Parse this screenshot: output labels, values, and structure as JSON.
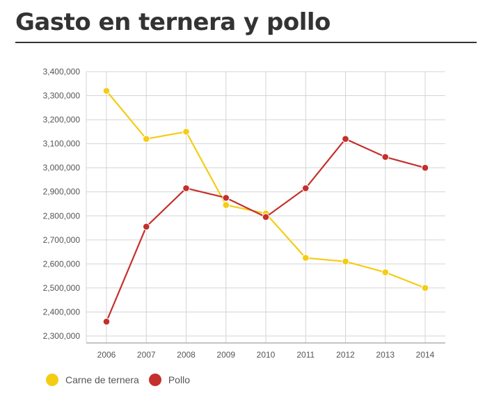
{
  "title": "Gasto en ternera y pollo",
  "colors": {
    "ternera": "#f5cc14",
    "pollo": "#c4302b",
    "grid": "#d4d4d4",
    "axis": "#888888",
    "text": "#555555"
  },
  "chart_data": {
    "type": "line",
    "title": "Gasto en ternera y pollo",
    "xlabel": "",
    "ylabel": "",
    "categories": [
      "2006",
      "2007",
      "2008",
      "2009",
      "2010",
      "2011",
      "2012",
      "2013",
      "2014"
    ],
    "ylim": [
      2270000,
      3400000
    ],
    "yticks": [
      2300000,
      2400000,
      2500000,
      2600000,
      2700000,
      2800000,
      2900000,
      3000000,
      3100000,
      3200000,
      3300000,
      3400000
    ],
    "ytick_labels": [
      "2,300,000",
      "2,400,000",
      "2,500,000",
      "2,600,000",
      "2,700,000",
      "2,800,000",
      "2,900,000",
      "3,000,000",
      "3,100,000",
      "3,200,000",
      "3,300,000",
      "3,400,000"
    ],
    "grid": true,
    "legend_position": "bottom-left",
    "series": [
      {
        "name": "Carne de ternera",
        "color": "#f5cc14",
        "values": [
          3320000,
          3120000,
          3150000,
          2845000,
          2810000,
          2625000,
          2610000,
          2565000,
          2500000
        ]
      },
      {
        "name": "Pollo",
        "color": "#c4302b",
        "values": [
          2360000,
          2755000,
          2915000,
          2875000,
          2795000,
          2915000,
          3120000,
          3045000,
          3000000
        ]
      }
    ]
  }
}
